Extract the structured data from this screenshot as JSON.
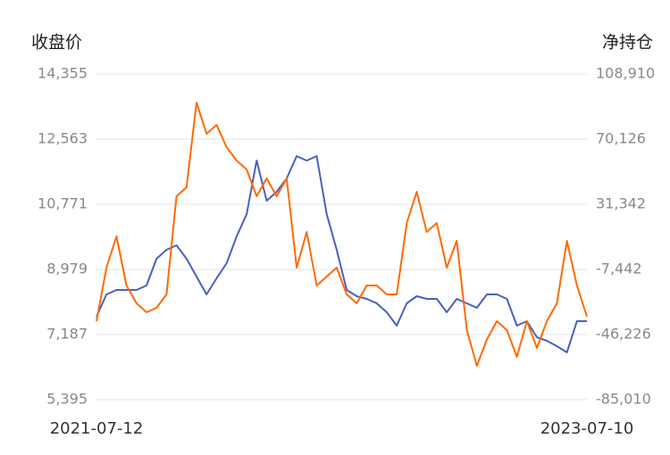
{
  "chart_data": {
    "type": "line",
    "y_label": "收盘价",
    "y2_label": "净持仓",
    "categories": [
      "2021-07-12",
      null,
      null,
      null,
      null,
      null,
      null,
      null,
      null,
      null,
      null,
      null,
      null,
      null,
      null,
      null,
      null,
      null,
      null,
      null,
      null,
      null,
      null,
      null,
      null,
      null,
      null,
      null,
      null,
      null,
      null,
      null,
      null,
      null,
      null,
      null,
      null,
      null,
      null,
      null,
      null,
      null,
      null,
      null,
      null,
      null,
      null,
      null,
      null,
      "2023-07-10"
    ],
    "series": [
      {
        "name": "收盘价",
        "color": "#4a5fc1",
        "values": [
          7678,
          8292,
          8414,
          8414,
          8414,
          8537,
          9274,
          9519,
          9642,
          9274,
          8783,
          8292,
          8734,
          9151,
          9887,
          10501,
          11974,
          10869,
          11115,
          11483,
          12097,
          11974,
          12097,
          10501,
          9519,
          8414,
          8243,
          8169,
          8046,
          7801,
          7433,
          8046,
          8243,
          8169,
          8169,
          7801,
          8169,
          8046,
          7923,
          8292,
          8292,
          8169,
          7433,
          7555,
          7113,
          7015,
          6868,
          6696,
          7555,
          7555
        ]
      },
      {
        "name": "净持仓",
        "color": "#ff6a00",
        "axis": "y2",
        "values": [
          -38256,
          -6378,
          12218,
          -17004,
          -27630,
          -32943,
          -30286,
          -22317,
          36126,
          41439,
          91913,
          73317,
          78630,
          65348,
          57378,
          52065,
          36126,
          46752,
          36126,
          46752,
          -6378,
          14874,
          -17004,
          -11691,
          -6378,
          -22317,
          -27630,
          -17004,
          -17004,
          -22317,
          -22317,
          20187,
          38783,
          14874,
          20187,
          -6378,
          9561,
          -43569,
          -64821,
          -49142,
          -38256,
          -43569,
          -59508,
          -38256,
          -54195,
          -38256,
          -27630,
          9561,
          -17004,
          -35599
        ]
      }
    ],
    "ylim": [
      5395,
      14355
    ],
    "yticks": [
      {
        "value": 5395,
        "label": "5,395"
      },
      {
        "value": 7187,
        "label": "7,187"
      },
      {
        "value": 8979,
        "label": "8,979"
      },
      {
        "value": 10771,
        "label": "10,771"
      },
      {
        "value": 12563,
        "label": "12,563"
      },
      {
        "value": 14355,
        "label": "14,355"
      }
    ],
    "y2lim": [
      -85010,
      108910
    ],
    "y2ticks": [
      {
        "value": -85010,
        "label": "-85,010"
      },
      {
        "value": -46226,
        "label": "-46,226"
      },
      {
        "value": -7442,
        "label": "-7,442"
      },
      {
        "value": 31342,
        "label": "31,342"
      },
      {
        "value": 70126,
        "label": "70,126"
      },
      {
        "value": 108910,
        "label": "108,910"
      }
    ],
    "grid": true
  }
}
